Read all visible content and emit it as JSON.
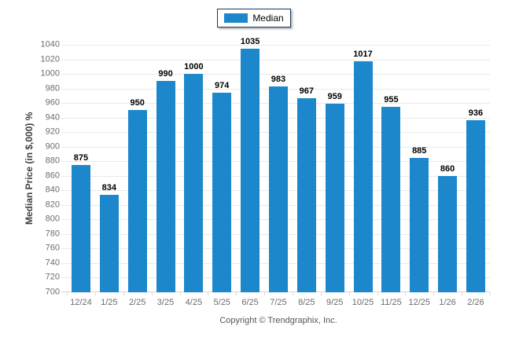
{
  "chart_data": {
    "type": "bar",
    "title": "",
    "categories": [
      "12/24",
      "1/25",
      "2/25",
      "3/25",
      "4/25",
      "5/25",
      "6/25",
      "7/25",
      "8/25",
      "9/25",
      "10/25",
      "11/25",
      "12/25",
      "1/26",
      "2/26"
    ],
    "values": [
      875,
      834,
      950,
      990,
      1000,
      974,
      1035,
      983,
      967,
      959,
      1017,
      955,
      885,
      860,
      936
    ],
    "series_name": "Median",
    "legend_label": "Median",
    "legend_position": "top-center",
    "xlabel": "",
    "ylabel": "Median Price (in $,000) %",
    "ylim": [
      700,
      1040
    ],
    "ytick_step": 20,
    "grid": "horizontal"
  },
  "footer": {
    "copyright": "Copyright © Trendgraphix, Inc."
  },
  "colors": {
    "bar": "#1d87cb",
    "legend_border": "#17375e",
    "grid": "#e9e9e9",
    "axis_line": "#d6d6d6",
    "tick": "#d9d9d9",
    "tick_label": "#6b6b6b",
    "value_label": "#000000",
    "axis_title": "#3f3f3f",
    "copyright_text": "#555555"
  }
}
